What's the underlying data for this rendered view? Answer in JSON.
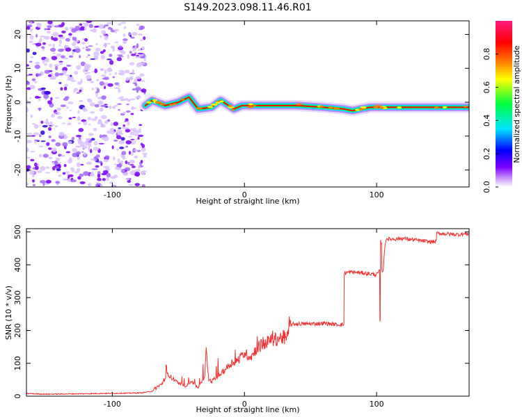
{
  "title": "S149.2023.098.11.46.R01",
  "chart_data": [
    {
      "type": "heatmap",
      "xlabel": "Height of straight line (km)",
      "ylabel": "Frequency (Hz)",
      "xlim": [
        -165,
        170
      ],
      "ylim": [
        -25,
        24
      ],
      "xticks": [
        -100,
        0,
        100
      ],
      "yticks": [
        -20,
        -10,
        0,
        10,
        20
      ],
      "grid": false,
      "colorbar": {
        "label": "Normalized spectral amplitude",
        "range": [
          0.0,
          1.0
        ],
        "ticks": [
          "0.0",
          "0.2",
          "0.4",
          "0.6",
          "0.8"
        ],
        "colors": [
          "#ffffff",
          "#cc99ff",
          "#7a00ff",
          "#0000ff",
          "#00e5ff",
          "#00ff40",
          "#ffff00",
          "#ff8000",
          "#ff0000",
          "#ff1a80"
        ]
      },
      "ridge": {
        "x": [
          -75,
          -70,
          -60,
          -50,
          -42,
          -35,
          -25,
          -18,
          -12,
          -8,
          -2,
          5,
          20,
          40,
          60,
          75,
          82,
          88,
          95,
          105,
          130,
          170
        ],
        "y": [
          -1,
          0.5,
          -1,
          0,
          1.5,
          -2,
          -1.5,
          0.5,
          -1,
          -2,
          -1,
          -1,
          -1,
          -1,
          -1.5,
          -2,
          -2.5,
          -2,
          -1.5,
          -1.5,
          -1.5,
          -1.5
        ]
      },
      "noise_region_x": [
        -165,
        -75
      ]
    },
    {
      "type": "line",
      "xlabel": "Height of straight line (km)",
      "ylabel": "SNR (10 * v/v)",
      "xlim": [
        -165,
        170
      ],
      "ylim": [
        0,
        510
      ],
      "xticks": [
        -100,
        0,
        100
      ],
      "yticks": [
        0,
        100,
        200,
        300,
        400,
        500
      ],
      "grid": false,
      "line_color": "#ee3333",
      "series": [
        {
          "x": [
            -165,
            -150,
            -130,
            -110,
            -90,
            -78,
            -70,
            -62,
            -58,
            -55,
            -50,
            -45,
            -40,
            -35,
            -30,
            -29,
            -27,
            -25,
            -20,
            -15,
            -10,
            -5,
            0,
            5,
            10,
            15,
            20,
            25,
            30,
            33,
            34,
            40,
            50,
            60,
            70,
            75,
            75.5,
            80,
            90,
            100,
            102,
            102.5,
            103,
            104,
            105,
            106,
            107,
            110,
            120,
            130,
            140,
            145,
            145.5,
            150,
            160,
            170
          ],
          "y": [
            8,
            6,
            7,
            8,
            9,
            10,
            15,
            40,
            70,
            55,
            40,
            30,
            45,
            25,
            60,
            140,
            50,
            45,
            60,
            80,
            100,
            110,
            130,
            120,
            150,
            160,
            170,
            175,
            180,
            182,
            218,
            220,
            220,
            222,
            218,
            218,
            375,
            378,
            375,
            370,
            380,
            230,
            470,
            380,
            385,
            440,
            480,
            478,
            480,
            475,
            470,
            470,
            495,
            495,
            492,
            495
          ]
        }
      ]
    }
  ]
}
